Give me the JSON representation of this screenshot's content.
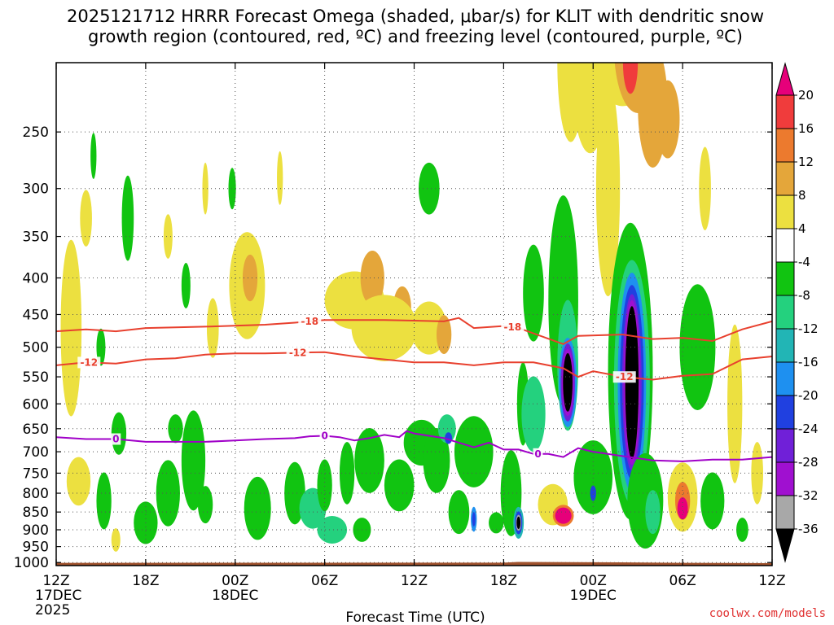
{
  "chart_data": {
    "type": "heatmap",
    "title_lines": [
      "2025121712 HRRR Forecast Omega (shaded, μbar/s) for KLIT with dendritic snow",
      "growth region (contoured, red, ºC) and freezing level (contoured, purple, ºC)"
    ],
    "xlabel": "Forecast Time (UTC)",
    "credit": "coolwx.com/models",
    "x_ticks": [
      {
        "hour": 0,
        "lines": [
          "12Z",
          "17DEC",
          "2025"
        ]
      },
      {
        "hour": 6,
        "lines": [
          "18Z"
        ]
      },
      {
        "hour": 12,
        "lines": [
          "00Z",
          "18DEC"
        ]
      },
      {
        "hour": 18,
        "lines": [
          "06Z"
        ]
      },
      {
        "hour": 24,
        "lines": [
          "12Z"
        ]
      },
      {
        "hour": 30,
        "lines": [
          "18Z"
        ]
      },
      {
        "hour": 36,
        "lines": [
          "00Z",
          "19DEC"
        ]
      },
      {
        "hour": 42,
        "lines": [
          "06Z"
        ]
      },
      {
        "hour": 48,
        "lines": [
          "12Z"
        ]
      }
    ],
    "x_range": [
      0,
      48
    ],
    "y_ticks": [
      "250",
      "300",
      "350",
      "400",
      "450",
      "500",
      "550",
      "600",
      "650",
      "700",
      "750",
      "800",
      "850",
      "900",
      "950",
      "1000"
    ],
    "y_range_hpa": [
      200,
      1010
    ],
    "y_scale": "log-pressure",
    "grid": true,
    "colorbar": {
      "labels": [
        "20",
        "16",
        "12",
        "8",
        "4",
        "-4",
        "-8",
        "-12",
        "-16",
        "-20",
        "-24",
        "-28",
        "-32",
        "-36"
      ],
      "levels": [
        {
          "min": 20,
          "color": "#e6007a"
        },
        {
          "min": 16,
          "color": "#f03c3c"
        },
        {
          "min": 12,
          "color": "#ec7a2e"
        },
        {
          "min": 8,
          "color": "#e4a63a"
        },
        {
          "min": 4,
          "color": "#ece040"
        },
        {
          "min": -4,
          "color": "#ffffff"
        },
        {
          "min": -8,
          "color": "#11c411"
        },
        {
          "min": -12,
          "color": "#24d17e"
        },
        {
          "min": -16,
          "color": "#22b5b5"
        },
        {
          "min": -20,
          "color": "#1e90f0"
        },
        {
          "min": -24,
          "color": "#2040e0"
        },
        {
          "min": -28,
          "color": "#7020d8"
        },
        {
          "min": -32,
          "color": "#a010d0"
        },
        {
          "min": -36,
          "color": "#a8a8a8"
        },
        {
          "min": -99,
          "color": "#000000"
        }
      ]
    },
    "terrain_color": "#a0522d",
    "omega_features": [
      {
        "t": 1.0,
        "p": 470,
        "ht": 0.7,
        "hp": 260,
        "v": 5
      },
      {
        "t": 2.0,
        "p": 330,
        "ht": 0.4,
        "hp": 60,
        "v": 5
      },
      {
        "t": 1.5,
        "p": 770,
        "ht": 0.8,
        "hp": 120,
        "v": 5
      },
      {
        "t": 2.5,
        "p": 270,
        "ht": 0.2,
        "hp": 40,
        "v": -5
      },
      {
        "t": 3.0,
        "p": 500,
        "ht": 0.3,
        "hp": 60,
        "v": -6
      },
      {
        "t": 3.2,
        "p": 820,
        "ht": 0.5,
        "hp": 150,
        "v": -5
      },
      {
        "t": 4.2,
        "p": 660,
        "ht": 0.5,
        "hp": 90,
        "v": -5
      },
      {
        "t": 4.0,
        "p": 930,
        "ht": 0.3,
        "hp": 70,
        "v": 4.5
      },
      {
        "t": 4.8,
        "p": 330,
        "ht": 0.4,
        "hp": 90,
        "v": -6
      },
      {
        "t": 6.0,
        "p": 880,
        "ht": 0.8,
        "hp": 120,
        "v": -5
      },
      {
        "t": 7.5,
        "p": 350,
        "ht": 0.3,
        "hp": 50,
        "v": 4.5
      },
      {
        "t": 8.7,
        "p": 410,
        "ht": 0.3,
        "hp": 60,
        "v": -5
      },
      {
        "t": 7.5,
        "p": 800,
        "ht": 0.8,
        "hp": 170,
        "v": -5
      },
      {
        "t": 8.0,
        "p": 650,
        "ht": 0.5,
        "hp": 60,
        "v": -5
      },
      {
        "t": 9.2,
        "p": 720,
        "ht": 0.8,
        "hp": 230,
        "v": -5
      },
      {
        "t": 10.0,
        "p": 830,
        "ht": 0.5,
        "hp": 100,
        "v": -6
      },
      {
        "t": 10.0,
        "p": 300,
        "ht": 0.2,
        "hp": 50,
        "v": 4.5
      },
      {
        "t": 10.5,
        "p": 470,
        "ht": 0.4,
        "hp": 90,
        "v": 4.5
      },
      {
        "t": 11.8,
        "p": 300,
        "ht": 0.25,
        "hp": 40,
        "v": -5
      },
      {
        "t": 12.8,
        "p": 410,
        "ht": 1.2,
        "hp": 140,
        "v": 6
      },
      {
        "t": 13.0,
        "p": 400,
        "ht": 0.5,
        "hp": 60,
        "v": 9
      },
      {
        "t": 15.0,
        "p": 290,
        "ht": 0.2,
        "hp": 50,
        "v": 4.5
      },
      {
        "t": 13.5,
        "p": 840,
        "ht": 0.9,
        "hp": 170,
        "v": -6
      },
      {
        "t": 16.0,
        "p": 800,
        "ht": 0.7,
        "hp": 160,
        "v": -7
      },
      {
        "t": 17.2,
        "p": 840,
        "ht": 0.9,
        "hp": 110,
        "v": -9
      },
      {
        "t": 18.0,
        "p": 780,
        "ht": 0.5,
        "hp": 130,
        "v": -8
      },
      {
        "t": 18.5,
        "p": 900,
        "ht": 1.0,
        "hp": 80,
        "v": -9
      },
      {
        "t": 19.5,
        "p": 750,
        "ht": 0.5,
        "hp": 150,
        "v": -7
      },
      {
        "t": 20.0,
        "p": 430,
        "ht": 2.0,
        "hp": 80,
        "v": 6
      },
      {
        "t": 21.2,
        "p": 400,
        "ht": 0.8,
        "hp": 70,
        "v": 9
      },
      {
        "t": 23.2,
        "p": 440,
        "ht": 0.6,
        "hp": 60,
        "v": 9
      },
      {
        "t": 22.0,
        "p": 470,
        "ht": 2.2,
        "hp": 100,
        "v": 5.5
      },
      {
        "t": 25.0,
        "p": 470,
        "ht": 1.2,
        "hp": 80,
        "v": 7
      },
      {
        "t": 26.0,
        "p": 480,
        "ht": 0.5,
        "hp": 60,
        "v": 10
      },
      {
        "t": 21.0,
        "p": 720,
        "ht": 1.0,
        "hp": 150,
        "v": -6
      },
      {
        "t": 20.5,
        "p": 900,
        "ht": 0.6,
        "hp": 70,
        "v": -7
      },
      {
        "t": 23.0,
        "p": 780,
        "ht": 1.0,
        "hp": 130,
        "v": -7
      },
      {
        "t": 24.5,
        "p": 680,
        "ht": 1.2,
        "hp": 100,
        "v": -6
      },
      {
        "t": 25.5,
        "p": 720,
        "ht": 0.9,
        "hp": 150,
        "v": -7
      },
      {
        "t": 26.2,
        "p": 650,
        "ht": 0.6,
        "hp": 60,
        "v": -12
      },
      {
        "t": 26.3,
        "p": 670,
        "ht": 0.25,
        "hp": 25,
        "v": -21
      },
      {
        "t": 27.0,
        "p": 850,
        "ht": 0.7,
        "hp": 120,
        "v": -8
      },
      {
        "t": 28.0,
        "p": 700,
        "ht": 1.3,
        "hp": 160,
        "v": -7
      },
      {
        "t": 25.0,
        "p": 300,
        "ht": 0.7,
        "hp": 50,
        "v": -5
      },
      {
        "t": 28.0,
        "p": 870,
        "ht": 0.2,
        "hp": 70,
        "v": -17
      },
      {
        "t": 28.0,
        "p": 870,
        "ht": 0.1,
        "hp": 40,
        "v": -22
      },
      {
        "t": 29.5,
        "p": 880,
        "ht": 0.5,
        "hp": 60,
        "v": -7
      },
      {
        "t": 30.5,
        "p": 800,
        "ht": 0.7,
        "hp": 220,
        "v": -8
      },
      {
        "t": 31.0,
        "p": 880,
        "ht": 0.35,
        "hp": 90,
        "v": -15
      },
      {
        "t": 31.0,
        "p": 880,
        "ht": 0.25,
        "hp": 65,
        "v": -24
      },
      {
        "t": 31.0,
        "p": 880,
        "ht": 0.18,
        "hp": 45,
        "v": -33
      },
      {
        "t": 31.0,
        "p": 880,
        "ht": 0.13,
        "hp": 35,
        "v": -40
      },
      {
        "t": 31.3,
        "p": 600,
        "ht": 0.4,
        "hp": 160,
        "v": -6
      },
      {
        "t": 32.0,
        "p": 420,
        "ht": 0.7,
        "hp": 130,
        "v": -7
      },
      {
        "t": 32.0,
        "p": 620,
        "ht": 0.8,
        "hp": 150,
        "v": -9
      },
      {
        "t": 33.3,
        "p": 830,
        "ht": 1.0,
        "hp": 110,
        "v": 6
      },
      {
        "t": 34.0,
        "p": 860,
        "ht": 0.7,
        "hp": 60,
        "v": 13
      },
      {
        "t": 34.0,
        "p": 860,
        "ht": 0.55,
        "hp": 45,
        "v": 22
      },
      {
        "t": 34.0,
        "p": 430,
        "ht": 1.0,
        "hp": 280,
        "v": -8
      },
      {
        "t": 34.3,
        "p": 530,
        "ht": 0.7,
        "hp": 220,
        "v": -12
      },
      {
        "t": 34.3,
        "p": 560,
        "ht": 0.6,
        "hp": 160,
        "v": -20
      },
      {
        "t": 34.3,
        "p": 560,
        "ht": 0.48,
        "hp": 140,
        "v": -27
      },
      {
        "t": 34.3,
        "p": 560,
        "ht": 0.4,
        "hp": 120,
        "v": -32
      },
      {
        "t": 34.3,
        "p": 560,
        "ht": 0.32,
        "hp": 105,
        "v": -40
      },
      {
        "t": 36.0,
        "p": 760,
        "ht": 1.3,
        "hp": 180,
        "v": -8
      },
      {
        "t": 36.0,
        "p": 800,
        "ht": 0.2,
        "hp": 40,
        "v": -22
      },
      {
        "t": 34.5,
        "p": 200,
        "ht": 0.9,
        "hp": 100,
        "v": 4.5
      },
      {
        "t": 35.8,
        "p": 210,
        "ht": 1.2,
        "hp": 100,
        "v": 6
      },
      {
        "t": 37.0,
        "p": 300,
        "ht": 0.8,
        "hp": 200,
        "v": 4.5
      },
      {
        "t": 38.0,
        "p": 180,
        "ht": 2.5,
        "hp": 130,
        "v": 6
      },
      {
        "t": 39.0,
        "p": 190,
        "ht": 1.6,
        "hp": 80,
        "v": 11
      },
      {
        "t": 38.5,
        "p": 200,
        "ht": 0.5,
        "hp": 40,
        "v": 18
      },
      {
        "t": 40.0,
        "p": 230,
        "ht": 1.0,
        "hp": 90,
        "v": 9
      },
      {
        "t": 41.0,
        "p": 240,
        "ht": 0.8,
        "hp": 60,
        "v": 10
      },
      {
        "t": 38.5,
        "p": 540,
        "ht": 1.5,
        "hp": 480,
        "v": -8
      },
      {
        "t": 38.6,
        "p": 560,
        "ht": 1.2,
        "hp": 420,
        "v": -12
      },
      {
        "t": 38.6,
        "p": 560,
        "ht": 0.95,
        "hp": 380,
        "v": -18
      },
      {
        "t": 38.6,
        "p": 560,
        "ht": 0.8,
        "hp": 340,
        "v": -22
      },
      {
        "t": 38.6,
        "p": 560,
        "ht": 0.65,
        "hp": 310,
        "v": -27
      },
      {
        "t": 38.6,
        "p": 560,
        "ht": 0.55,
        "hp": 290,
        "v": -32
      },
      {
        "t": 38.6,
        "p": 560,
        "ht": 0.45,
        "hp": 270,
        "v": -40
      },
      {
        "t": 39.5,
        "p": 820,
        "ht": 1.2,
        "hp": 250,
        "v": -8
      },
      {
        "t": 40.0,
        "p": 850,
        "ht": 0.5,
        "hp": 120,
        "v": -12
      },
      {
        "t": 43.0,
        "p": 500,
        "ht": 1.2,
        "hp": 200,
        "v": -7
      },
      {
        "t": 43.5,
        "p": 300,
        "ht": 0.4,
        "hp": 80,
        "v": 5
      },
      {
        "t": 42.0,
        "p": 810,
        "ht": 1.0,
        "hp": 180,
        "v": 5
      },
      {
        "t": 42.0,
        "p": 820,
        "ht": 0.5,
        "hp": 100,
        "v": 12
      },
      {
        "t": 42.0,
        "p": 840,
        "ht": 0.35,
        "hp": 60,
        "v": 20
      },
      {
        "t": 44.0,
        "p": 820,
        "ht": 0.8,
        "hp": 150,
        "v": -6
      },
      {
        "t": 45.5,
        "p": 600,
        "ht": 0.5,
        "hp": 300,
        "v": 5
      },
      {
        "t": 46.0,
        "p": 900,
        "ht": 0.4,
        "hp": 70,
        "v": -6
      },
      {
        "t": 47.0,
        "p": 750,
        "ht": 0.4,
        "hp": 150,
        "v": 4.5
      }
    ],
    "contours": [
      {
        "label": "-18",
        "color": "#e8402e",
        "label_hours": [
          17.0,
          30.6
        ],
        "points": [
          [
            0,
            475
          ],
          [
            2,
            472
          ],
          [
            4,
            475
          ],
          [
            6,
            470
          ],
          [
            10,
            468
          ],
          [
            14,
            465
          ],
          [
            16,
            462
          ],
          [
            18,
            458
          ],
          [
            22,
            458
          ],
          [
            26,
            460
          ],
          [
            27,
            455
          ],
          [
            28,
            470
          ],
          [
            30,
            467
          ],
          [
            31,
            470
          ],
          [
            34,
            495
          ],
          [
            35,
            482
          ],
          [
            38,
            480
          ],
          [
            40,
            487
          ],
          [
            42,
            485
          ],
          [
            44,
            490
          ],
          [
            46,
            472
          ],
          [
            48,
            460
          ]
        ]
      },
      {
        "label": "-12",
        "color": "#e8402e",
        "label_hours": [
          2.2,
          16.2,
          38.1
        ],
        "points": [
          [
            0,
            530
          ],
          [
            2,
            525
          ],
          [
            4,
            527
          ],
          [
            6,
            520
          ],
          [
            8,
            518
          ],
          [
            10,
            512
          ],
          [
            12,
            510
          ],
          [
            14,
            510
          ],
          [
            18,
            508
          ],
          [
            20,
            515
          ],
          [
            22,
            520
          ],
          [
            24,
            525
          ],
          [
            26,
            525
          ],
          [
            28,
            530
          ],
          [
            30,
            525
          ],
          [
            32,
            525
          ],
          [
            34,
            535
          ],
          [
            35,
            550
          ],
          [
            36,
            540
          ],
          [
            38,
            550
          ],
          [
            40,
            555
          ],
          [
            42,
            548
          ],
          [
            44,
            545
          ],
          [
            46,
            520
          ],
          [
            48,
            515
          ]
        ]
      },
      {
        "label": "0",
        "color": "#a000c8",
        "label_hours": [
          4.0,
          18.0,
          32.3
        ],
        "points": [
          [
            0,
            668
          ],
          [
            2,
            672
          ],
          [
            4,
            672
          ],
          [
            6,
            678
          ],
          [
            8,
            678
          ],
          [
            10,
            678
          ],
          [
            12,
            675
          ],
          [
            14,
            672
          ],
          [
            16,
            670
          ],
          [
            17,
            666
          ],
          [
            18,
            665
          ],
          [
            19,
            668
          ],
          [
            20,
            675
          ],
          [
            21,
            670
          ],
          [
            22,
            663
          ],
          [
            23,
            668
          ],
          [
            23.5,
            655
          ],
          [
            24,
            660
          ],
          [
            26,
            670
          ],
          [
            28,
            690
          ],
          [
            29,
            680
          ],
          [
            30,
            695
          ],
          [
            31,
            695
          ],
          [
            32,
            705
          ],
          [
            33,
            705
          ],
          [
            34,
            712
          ],
          [
            35,
            692
          ],
          [
            36,
            700
          ],
          [
            38,
            710
          ],
          [
            40,
            720
          ],
          [
            42,
            722
          ],
          [
            44,
            718
          ],
          [
            46,
            718
          ],
          [
            48,
            712
          ]
        ]
      }
    ]
  }
}
